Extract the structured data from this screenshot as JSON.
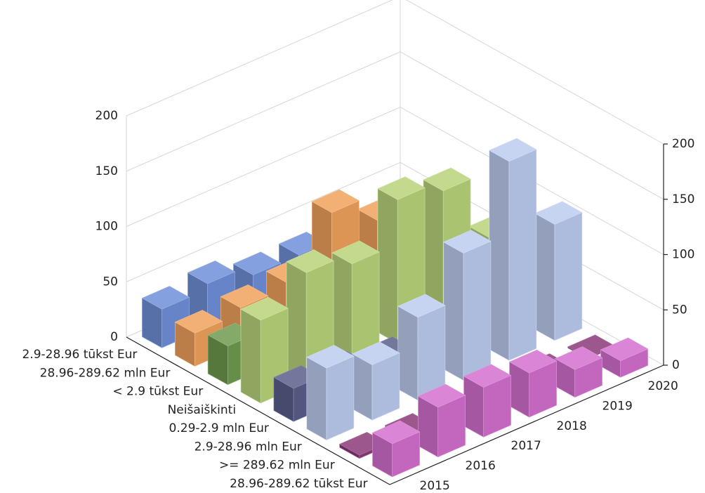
{
  "chart_data": {
    "type": "bar3d",
    "categories": [
      "2015",
      "2016",
      "2017",
      "2018",
      "2019",
      "2020"
    ],
    "series": [
      {
        "name": "2.9-28.96 tūkst Eur",
        "color": "#6f8fd8",
        "values": [
          35,
          40,
          30,
          30,
          20,
          15
        ]
      },
      {
        "name": "28.96-289.62 mln Eur",
        "color": "#f0a25c",
        "values": [
          30,
          35,
          40,
          85,
          60,
          40
        ]
      },
      {
        "name": "< 2.9 tūkst Eur",
        "color": "#6f9a4e",
        "values": [
          35,
          30,
          25,
          20,
          15,
          10
        ]
      },
      {
        "name": "Neišaiškinti",
        "color": "#b8d47a",
        "values": [
          75,
          100,
          90,
          130,
          120,
          60
        ]
      },
      {
        "name": "0.29-2.9 mln Eur",
        "color": "#5a5f8a",
        "values": [
          30,
          25,
          20,
          15,
          10,
          5
        ]
      },
      {
        "name": "2.9-28.96 mln Eur",
        "color": "#bcccf0",
        "values": [
          65,
          50,
          75,
          115,
          180,
          105
        ]
      },
      {
        "name": ">= 289.62 mln Eur",
        "color": "#8a3a78",
        "values": [
          3,
          2,
          2,
          2,
          2,
          1
        ]
      },
      {
        "name": "28.96-289.62 tūkst Eur",
        "color": "#d36fcf",
        "values": [
          30,
          45,
          45,
          40,
          25,
          15
        ]
      }
    ],
    "ylim": [
      0,
      200
    ],
    "yticks": [
      0,
      50,
      100,
      150,
      200
    ],
    "grid": true
  }
}
